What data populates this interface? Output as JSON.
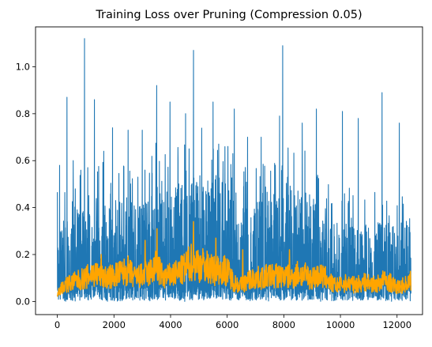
{
  "chart_data": {
    "type": "line",
    "title": "Training Loss over Pruning (Compression 0.05)",
    "xlabel": "",
    "ylabel": "",
    "xlim": [
      -770,
      12900
    ],
    "ylim": [
      -0.056,
      1.17
    ],
    "x_ticks": [
      0,
      2000,
      4000,
      6000,
      8000,
      10000,
      12000
    ],
    "y_ticks": [
      0.0,
      0.2,
      0.4,
      0.6,
      0.8,
      1.0
    ],
    "x_tick_labels": [
      "0",
      "2000",
      "4000",
      "6000",
      "8000",
      "10000",
      "12000"
    ],
    "y_tick_labels": [
      "0.0",
      "0.2",
      "0.4",
      "0.6",
      "0.8",
      "1.0"
    ],
    "grid": false,
    "legend": "none",
    "n_points": 12500,
    "series": [
      {
        "color": "#1f77b4",
        "description": "raw per-step loss, dense noisy band mostly 0.0–0.5 with spikes",
        "envelope_x": [
          0,
          500,
          1000,
          1500,
          2000,
          2500,
          3000,
          3500,
          4000,
          4500,
          5000,
          5500,
          6000,
          6500,
          7000,
          7500,
          8000,
          8500,
          9000,
          9500,
          10000,
          10500,
          11000,
          11500,
          12000,
          12500
        ],
        "typical_high": [
          0.3,
          0.4,
          0.42,
          0.42,
          0.4,
          0.42,
          0.45,
          0.5,
          0.48,
          0.52,
          0.58,
          0.55,
          0.5,
          0.42,
          0.42,
          0.45,
          0.48,
          0.48,
          0.46,
          0.35,
          0.33,
          0.33,
          0.33,
          0.33,
          0.33,
          0.35
        ],
        "peaks": [
          {
            "x": 80,
            "y": 0.58
          },
          {
            "x": 340,
            "y": 0.87
          },
          {
            "x": 560,
            "y": 0.6
          },
          {
            "x": 960,
            "y": 1.12
          },
          {
            "x": 1310,
            "y": 0.86
          },
          {
            "x": 1640,
            "y": 0.64
          },
          {
            "x": 1950,
            "y": 0.74
          },
          {
            "x": 2500,
            "y": 0.73
          },
          {
            "x": 3000,
            "y": 0.73
          },
          {
            "x": 3510,
            "y": 0.92
          },
          {
            "x": 3980,
            "y": 0.85
          },
          {
            "x": 4530,
            "y": 0.8
          },
          {
            "x": 4810,
            "y": 1.07
          },
          {
            "x": 5500,
            "y": 0.85
          },
          {
            "x": 6250,
            "y": 0.82
          },
          {
            "x": 6720,
            "y": 0.7
          },
          {
            "x": 7200,
            "y": 0.7
          },
          {
            "x": 7850,
            "y": 0.79
          },
          {
            "x": 7960,
            "y": 1.09
          },
          {
            "x": 8650,
            "y": 0.76
          },
          {
            "x": 9150,
            "y": 0.82
          },
          {
            "x": 10070,
            "y": 0.81
          },
          {
            "x": 10630,
            "y": 0.78
          },
          {
            "x": 11470,
            "y": 0.89
          },
          {
            "x": 12080,
            "y": 0.76
          }
        ]
      },
      {
        "color": "#ffa500",
        "description": "smoothed loss",
        "x": [
          0,
          250,
          500,
          750,
          1000,
          1250,
          1500,
          1750,
          2000,
          2250,
          2500,
          2750,
          3000,
          3250,
          3500,
          3750,
          4000,
          4250,
          4500,
          4750,
          5000,
          5250,
          5500,
          5750,
          6000,
          6250,
          6500,
          6750,
          7000,
          7250,
          7500,
          7750,
          8000,
          8250,
          8500,
          8750,
          9000,
          9250,
          9500,
          9750,
          10000,
          10250,
          10500,
          10750,
          11000,
          11250,
          11500,
          11750,
          12000,
          12250,
          12500
        ],
        "y": [
          0.04,
          0.07,
          0.08,
          0.09,
          0.1,
          0.12,
          0.11,
          0.1,
          0.11,
          0.12,
          0.13,
          0.1,
          0.11,
          0.12,
          0.15,
          0.1,
          0.11,
          0.12,
          0.14,
          0.17,
          0.16,
          0.15,
          0.13,
          0.14,
          0.13,
          0.08,
          0.07,
          0.09,
          0.1,
          0.1,
          0.11,
          0.11,
          0.11,
          0.1,
          0.12,
          0.11,
          0.1,
          0.11,
          0.1,
          0.07,
          0.07,
          0.08,
          0.07,
          0.08,
          0.08,
          0.07,
          0.09,
          0.08,
          0.06,
          0.07,
          0.09
        ],
        "spikes": [
          {
            "x": 3520,
            "y": 0.31
          },
          {
            "x": 4810,
            "y": 0.34
          },
          {
            "x": 3100,
            "y": 0.26
          },
          {
            "x": 5600,
            "y": 0.27
          },
          {
            "x": 6550,
            "y": 0.22
          },
          {
            "x": 8200,
            "y": 0.22
          },
          {
            "x": 1550,
            "y": 0.2
          }
        ]
      }
    ]
  }
}
